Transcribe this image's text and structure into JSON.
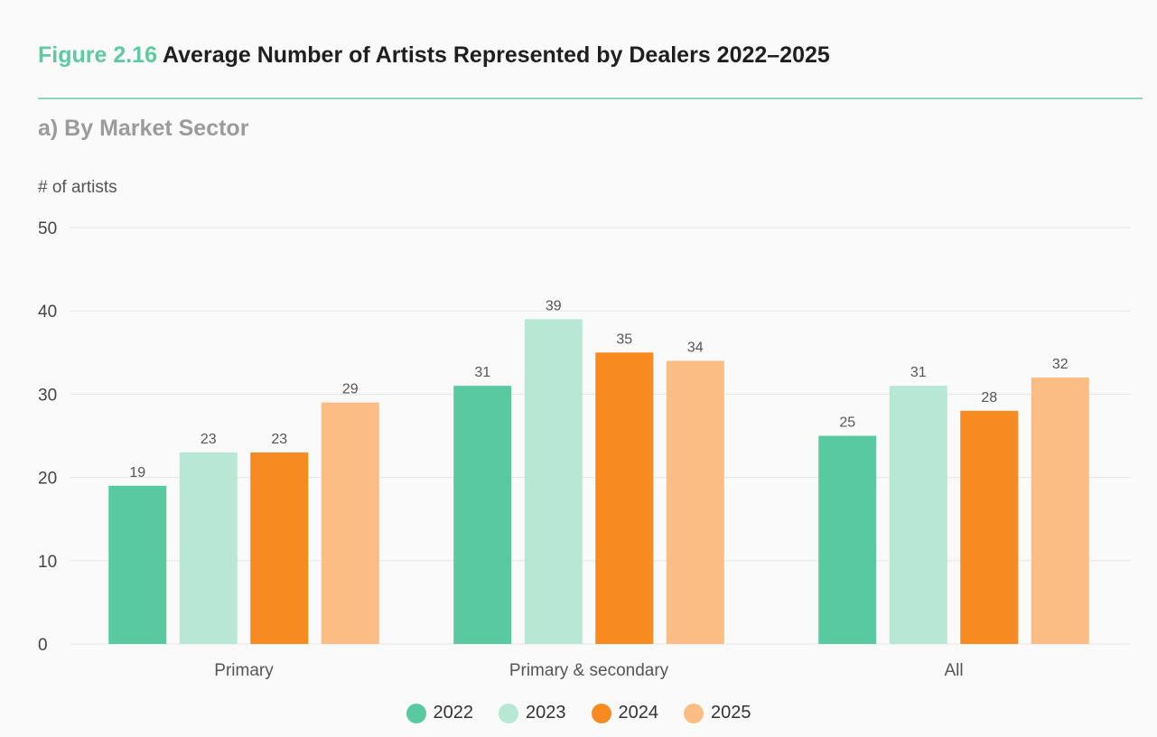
{
  "header": {
    "figure_number": "Figure 2.16",
    "figure_title": "Average Number of Artists Represented by Dealers 2022–2025",
    "subtitle": "a) By Market Sector"
  },
  "chart_data": {
    "type": "bar",
    "title": "Average Number of Artists Represented by Dealers 2022–2025",
    "subtitle": "a) By Market Sector",
    "xlabel": "",
    "ylabel": "# of artists",
    "ylim": [
      0,
      50
    ],
    "yticks": [
      0,
      10,
      20,
      30,
      40,
      50
    ],
    "grid": true,
    "legend_position": "bottom-center",
    "categories": [
      "Primary",
      "Primary & secondary",
      "All"
    ],
    "series": [
      {
        "name": "2022",
        "color": "#58c9a0",
        "values": [
          19,
          31,
          25
        ]
      },
      {
        "name": "2023",
        "color": "#b7e7d5",
        "values": [
          23,
          39,
          31
        ]
      },
      {
        "name": "2024",
        "color": "#f78b22",
        "values": [
          23,
          35,
          28
        ]
      },
      {
        "name": "2025",
        "color": "#fbbd84",
        "values": [
          29,
          34,
          32
        ]
      }
    ]
  }
}
